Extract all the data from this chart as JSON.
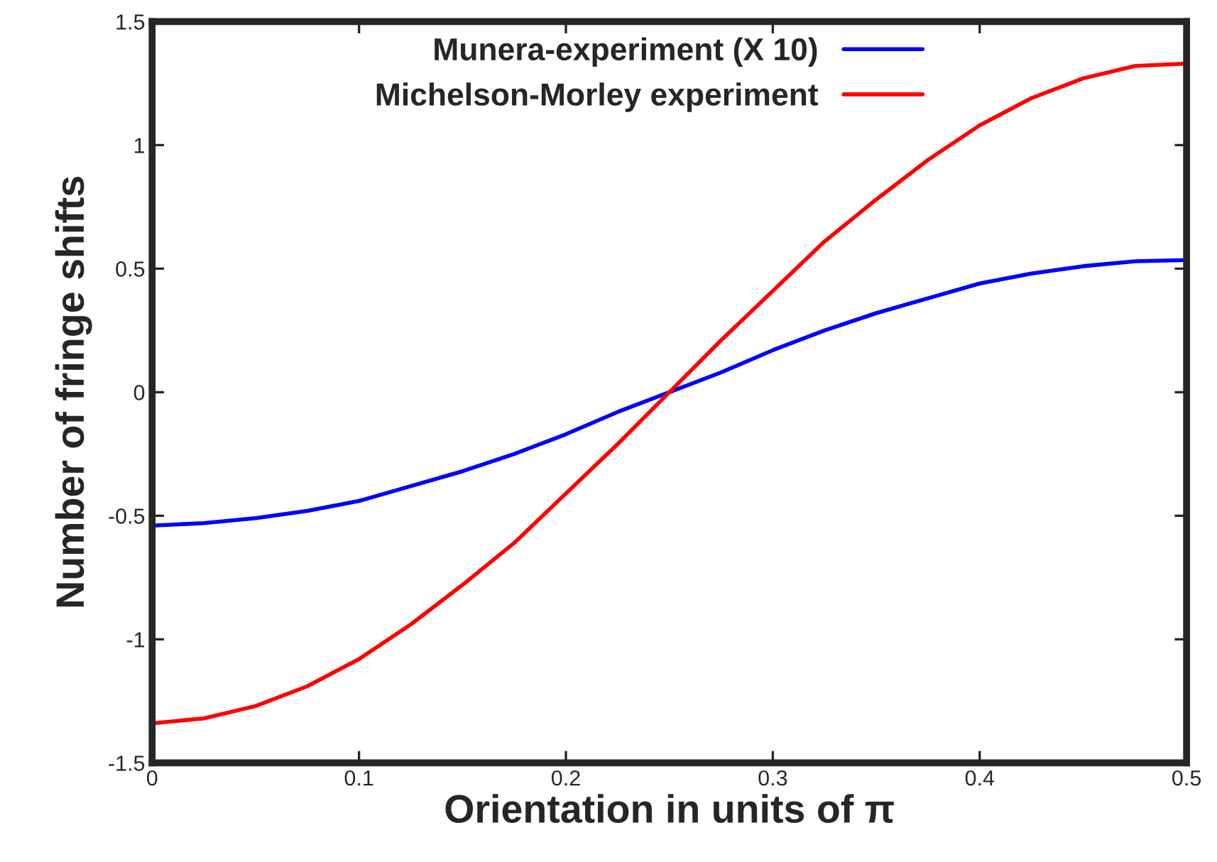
{
  "chart_data": {
    "type": "line",
    "xlabel": "Orientation in units of π",
    "ylabel": "Number of fringe shifts",
    "x": [
      0,
      0.025,
      0.05,
      0.075,
      0.1,
      0.125,
      0.15,
      0.175,
      0.2,
      0.225,
      0.25,
      0.275,
      0.3,
      0.325,
      0.35,
      0.375,
      0.4,
      0.425,
      0.45,
      0.475,
      0.5
    ],
    "series": [
      {
        "name": "Munera-experiment (X 10)",
        "color": "#0000ff",
        "values": [
          -0.54,
          -0.53,
          -0.51,
          -0.48,
          -0.44,
          -0.38,
          -0.32,
          -0.25,
          -0.17,
          -0.08,
          0,
          0.08,
          0.17,
          0.25,
          0.32,
          0.38,
          0.44,
          0.48,
          0.51,
          0.53,
          0.535
        ]
      },
      {
        "name": "Michelson-Morley experiment",
        "color": "#ff0000",
        "values": [
          -1.34,
          -1.32,
          -1.27,
          -1.19,
          -1.08,
          -0.94,
          -0.78,
          -0.61,
          -0.41,
          -0.21,
          0,
          0.21,
          0.41,
          0.61,
          0.78,
          0.94,
          1.08,
          1.19,
          1.27,
          1.32,
          1.33
        ]
      }
    ],
    "xlim": [
      0,
      0.5
    ],
    "xticks": [
      0,
      0.1,
      0.2,
      0.3,
      0.4,
      0.5
    ],
    "ylim": [
      -1.5,
      1.5
    ],
    "yticks": [
      -1.5,
      -1,
      -0.5,
      0,
      0.5,
      1,
      1.5
    ],
    "grid": false,
    "legend": "top right",
    "marker": "none",
    "line_style": "solid"
  }
}
